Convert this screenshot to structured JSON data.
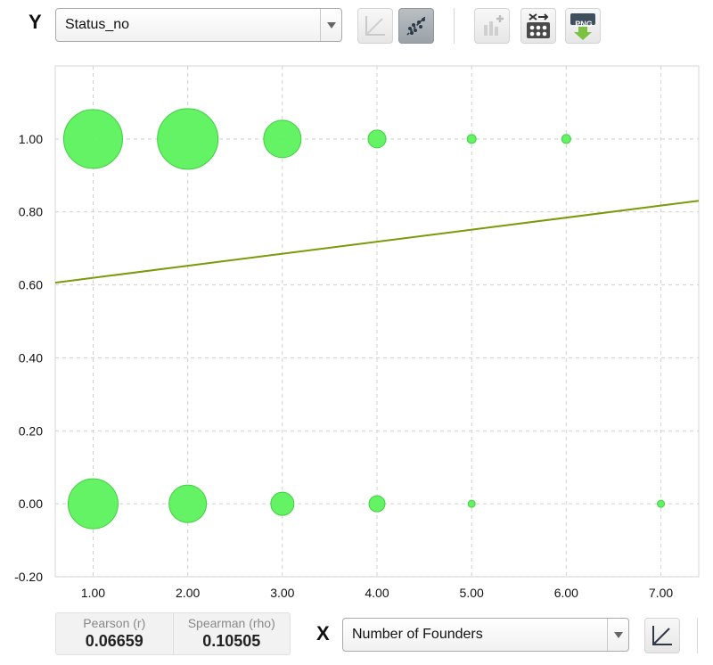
{
  "y_control": {
    "axis_letter": "Y",
    "selected": "Status_no"
  },
  "x_control": {
    "axis_letter": "X",
    "selected": "Number of Founders"
  },
  "toolbar": {
    "buttons": [
      {
        "icon": "line-chart-icon",
        "state": "disabled"
      },
      {
        "icon": "scatter-trend-icon",
        "state": "active"
      },
      {
        "icon": "add-bar-chart-icon",
        "state": "disabled"
      },
      {
        "icon": "shuffle-matrix-icon",
        "state": "enabled"
      },
      {
        "icon": "png-download-icon",
        "state": "enabled",
        "label": "PNG"
      }
    ]
  },
  "stats": {
    "pearson_label": "Pearson (r)",
    "pearson_value": "0.06659",
    "spearman_label": "Spearman (rho)",
    "spearman_value": "0.10505"
  },
  "colors": {
    "bubble_fill": "#5cf25c",
    "bubble_stroke": "#3fcf3f",
    "trend_line": "#7a9a0a",
    "grid": "#d0d0d0",
    "active_button": "#a3abb1"
  },
  "chart_data": {
    "type": "scatter",
    "xlabel": "",
    "ylabel": "",
    "xlim": [
      0.6,
      7.4
    ],
    "ylim": [
      -0.2,
      1.2
    ],
    "x_ticks": [
      "1.00",
      "2.00",
      "3.00",
      "4.00",
      "5.00",
      "6.00",
      "7.00"
    ],
    "x_tick_values": [
      1,
      2,
      3,
      4,
      5,
      6,
      7
    ],
    "y_ticks": [
      "1.00",
      "0.80",
      "0.60",
      "0.40",
      "0.20",
      "0.00",
      "-0.20"
    ],
    "y_tick_values": [
      1.0,
      0.8,
      0.6,
      0.4,
      0.2,
      0.0,
      -0.2
    ],
    "grid": true,
    "point_size_encodes": "count",
    "points": [
      {
        "x": 1,
        "y": 1,
        "size": 33
      },
      {
        "x": 2,
        "y": 1,
        "size": 34
      },
      {
        "x": 3,
        "y": 1,
        "size": 21
      },
      {
        "x": 4,
        "y": 1,
        "size": 10
      },
      {
        "x": 5,
        "y": 1,
        "size": 5
      },
      {
        "x": 6,
        "y": 1,
        "size": 5
      },
      {
        "x": 1,
        "y": 0,
        "size": 28
      },
      {
        "x": 2,
        "y": 0,
        "size": 21
      },
      {
        "x": 3,
        "y": 0,
        "size": 13
      },
      {
        "x": 4,
        "y": 0,
        "size": 9
      },
      {
        "x": 5,
        "y": 0,
        "size": 4
      },
      {
        "x": 7,
        "y": 0,
        "size": 4
      }
    ],
    "trend_line": {
      "slope": 0.033,
      "intercept": 0.5863
    }
  }
}
